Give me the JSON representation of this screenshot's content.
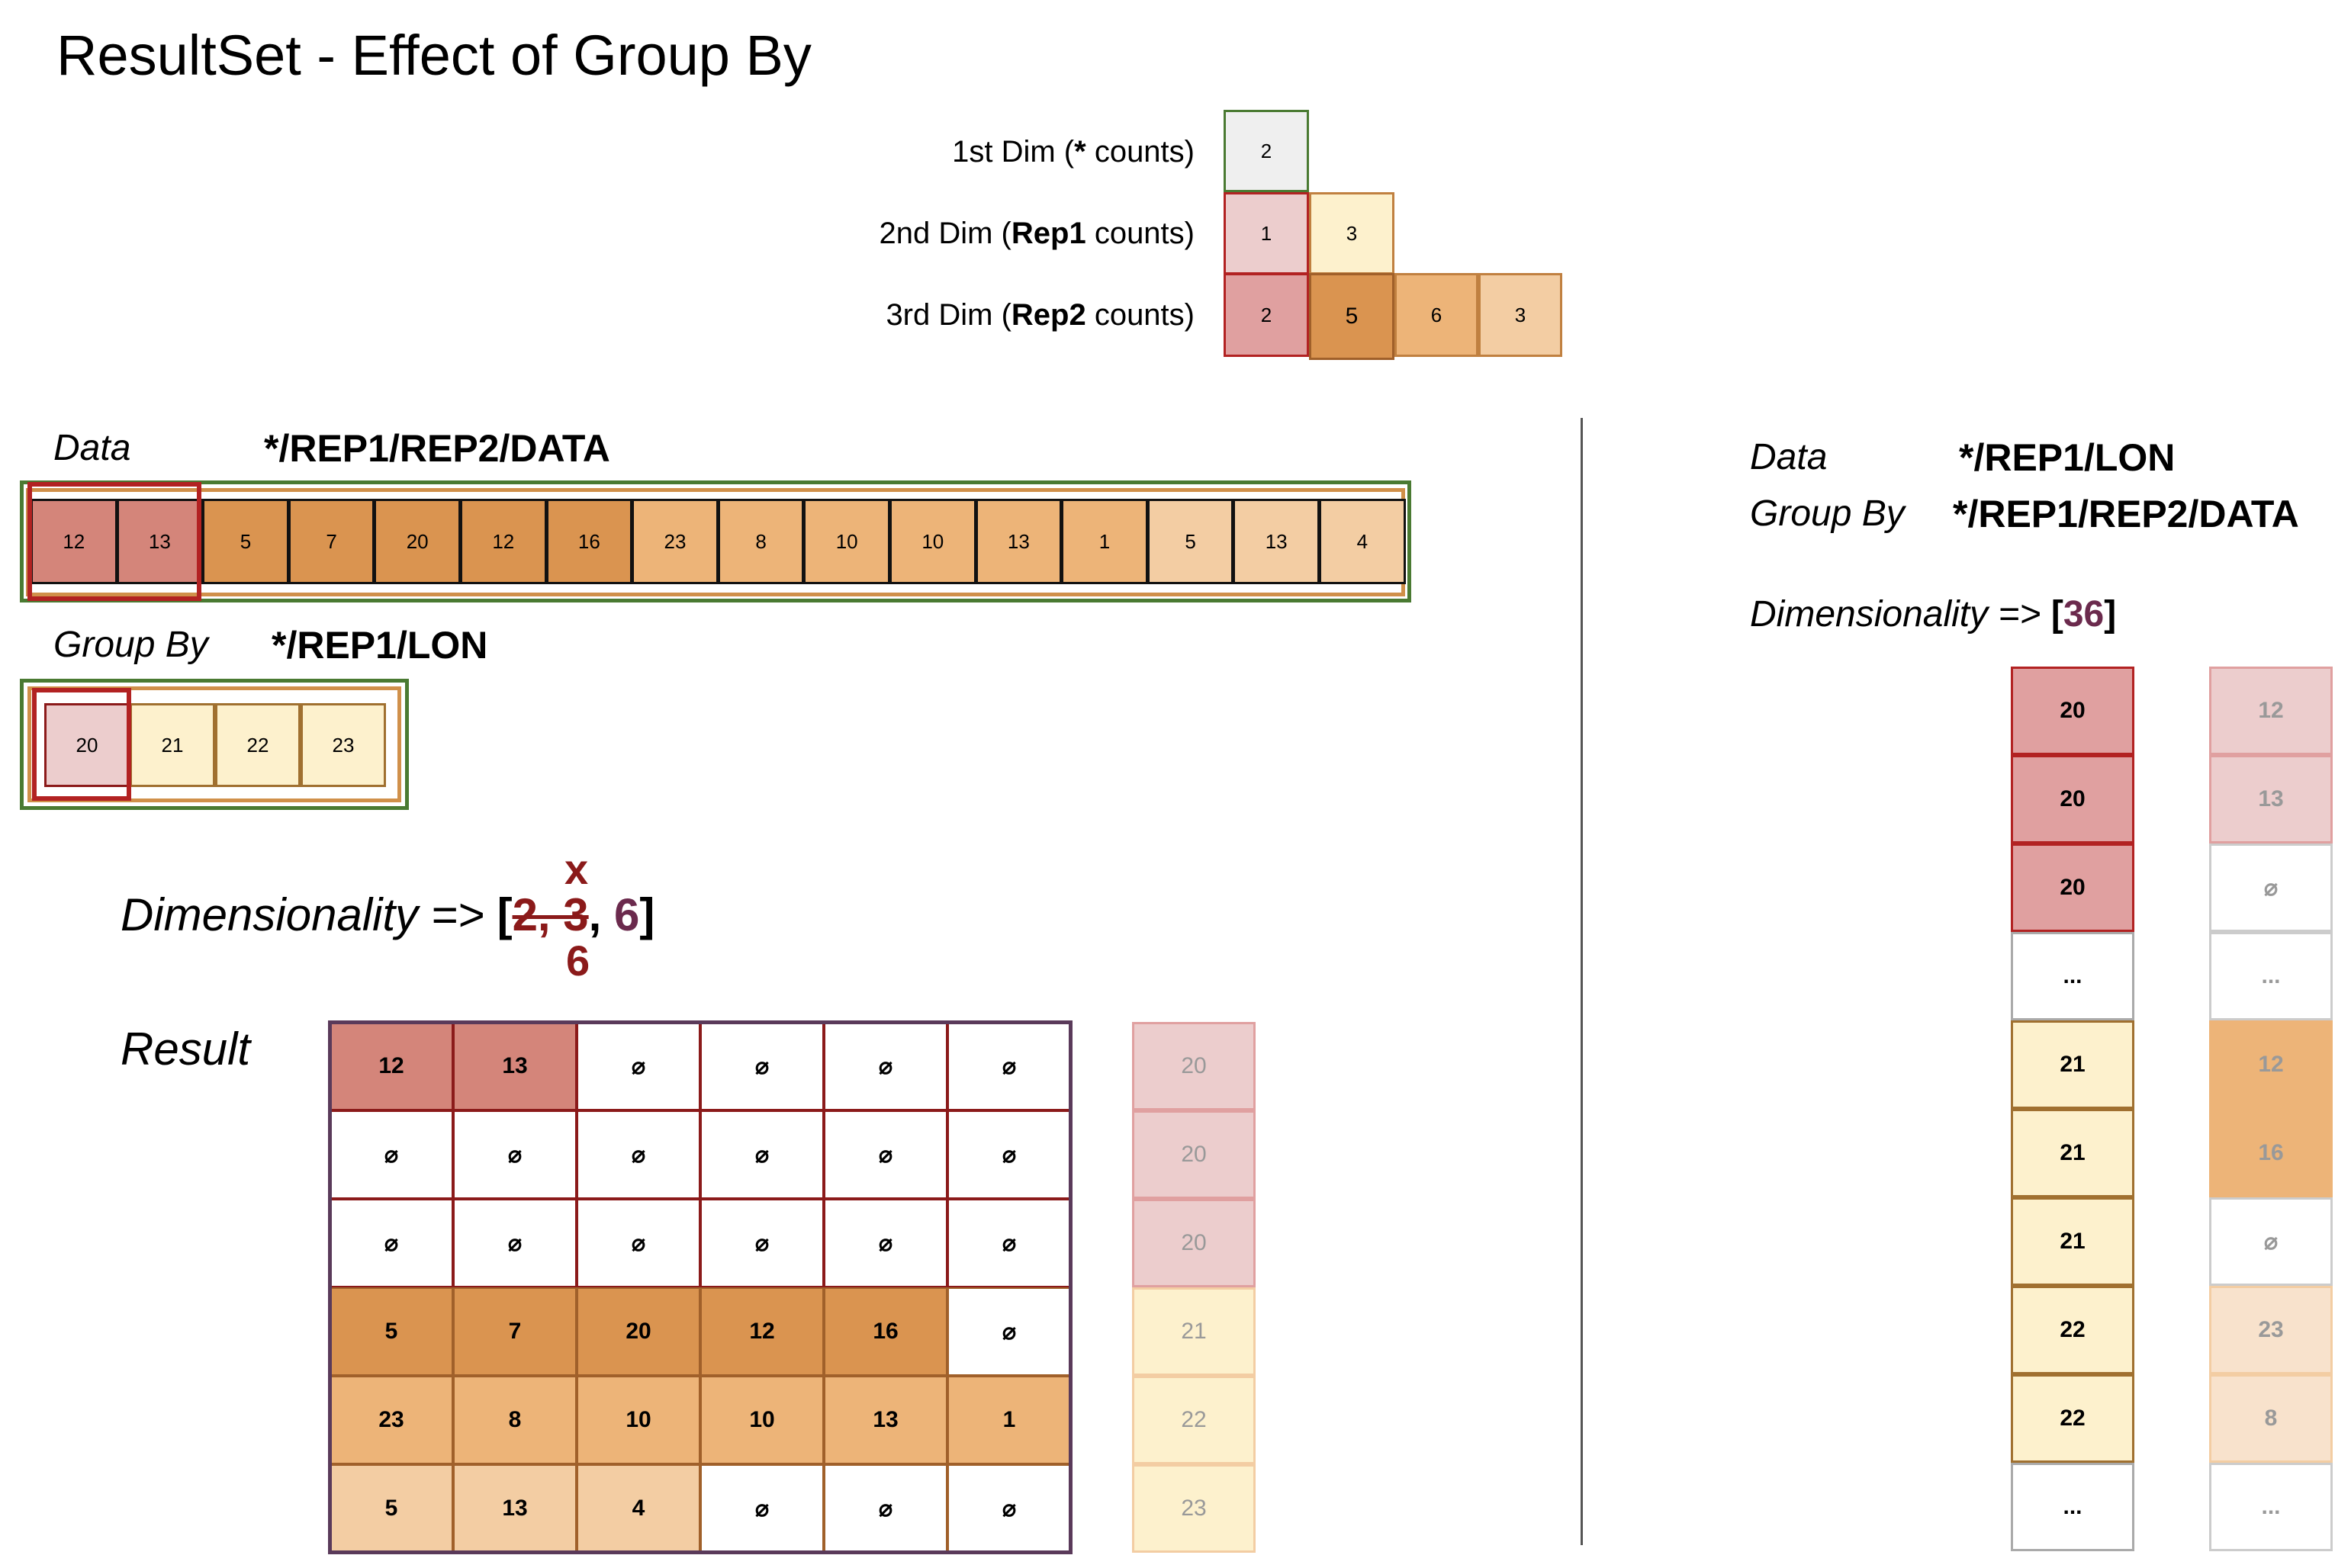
{
  "title": "ResultSet - Effect of Group By",
  "dims": {
    "d1": {
      "pre": "1st Dim (",
      "bold": "*",
      "post": " counts)",
      "values": [
        "2"
      ]
    },
    "d2": {
      "pre": "2nd Dim (",
      "bold": "Rep1",
      "post": " counts)",
      "values": [
        "1",
        "3"
      ]
    },
    "d3": {
      "pre": "3rd Dim (",
      "bold": "Rep2",
      "post": " counts)",
      "values": [
        "2",
        "5",
        "6",
        "3"
      ]
    }
  },
  "left": {
    "data_label": "Data",
    "data_path": "*/REP1/REP2/DATA",
    "data_values": [
      "12",
      "13",
      "5",
      "7",
      "20",
      "12",
      "16",
      "23",
      "8",
      "10",
      "10",
      "13",
      "1",
      "5",
      "13",
      "4"
    ],
    "groupby_label": "Group By",
    "groupby_path": "*/REP1/LON",
    "groupby_values": [
      "20",
      "21",
      "22",
      "23"
    ],
    "dimensionality_label": "Dimensionality => ",
    "dim_open": "[",
    "dim_struck": "2, 3",
    "dim_comma": ", ",
    "dim_new": "6",
    "dim_close": "]",
    "dim_x": "x",
    "dim_6": "6",
    "result_label": "Result",
    "result_rows": [
      [
        "12",
        "13",
        "⌀",
        "⌀",
        "⌀",
        "⌀"
      ],
      [
        "⌀",
        "⌀",
        "⌀",
        "⌀",
        "⌀",
        "⌀"
      ],
      [
        "⌀",
        "⌀",
        "⌀",
        "⌀",
        "⌀",
        "⌀"
      ],
      [
        "5",
        "7",
        "20",
        "12",
        "16",
        "⌀"
      ],
      [
        "23",
        "8",
        "10",
        "10",
        "13",
        "1"
      ],
      [
        "5",
        "13",
        "4",
        "⌀",
        "⌀",
        "⌀"
      ]
    ],
    "result_keys": [
      "20",
      "20",
      "20",
      "21",
      "22",
      "23"
    ]
  },
  "right": {
    "data_label": "Data",
    "data_path": "*/REP1/LON",
    "groupby_label": "Group By",
    "groupby_path": "*/REP1/REP2/DATA",
    "dimensionality_label": "Dimensionality => ",
    "dim_open": "[",
    "dim_value": "36",
    "dim_close": "]",
    "col1": [
      "20",
      "20",
      "20",
      "...",
      "21",
      "21",
      "21",
      "22",
      "22",
      "..."
    ],
    "col2": [
      "12",
      "13",
      "⌀",
      "...",
      "12",
      "16",
      "⌀",
      "23",
      "8",
      "..."
    ]
  },
  "colors": {
    "red_dark": "#D4857A",
    "red_mid": "#E0A0A0",
    "red_light": "#ECCDCD",
    "orange_dark": "#DA9450",
    "orange_mid": "#EDB478",
    "orange_light": "#F3CDA3",
    "yellow": "#FDF1CD",
    "grey": "#EFEFEF",
    "green_border": "#4A7A32",
    "red_border": "#B22222"
  }
}
